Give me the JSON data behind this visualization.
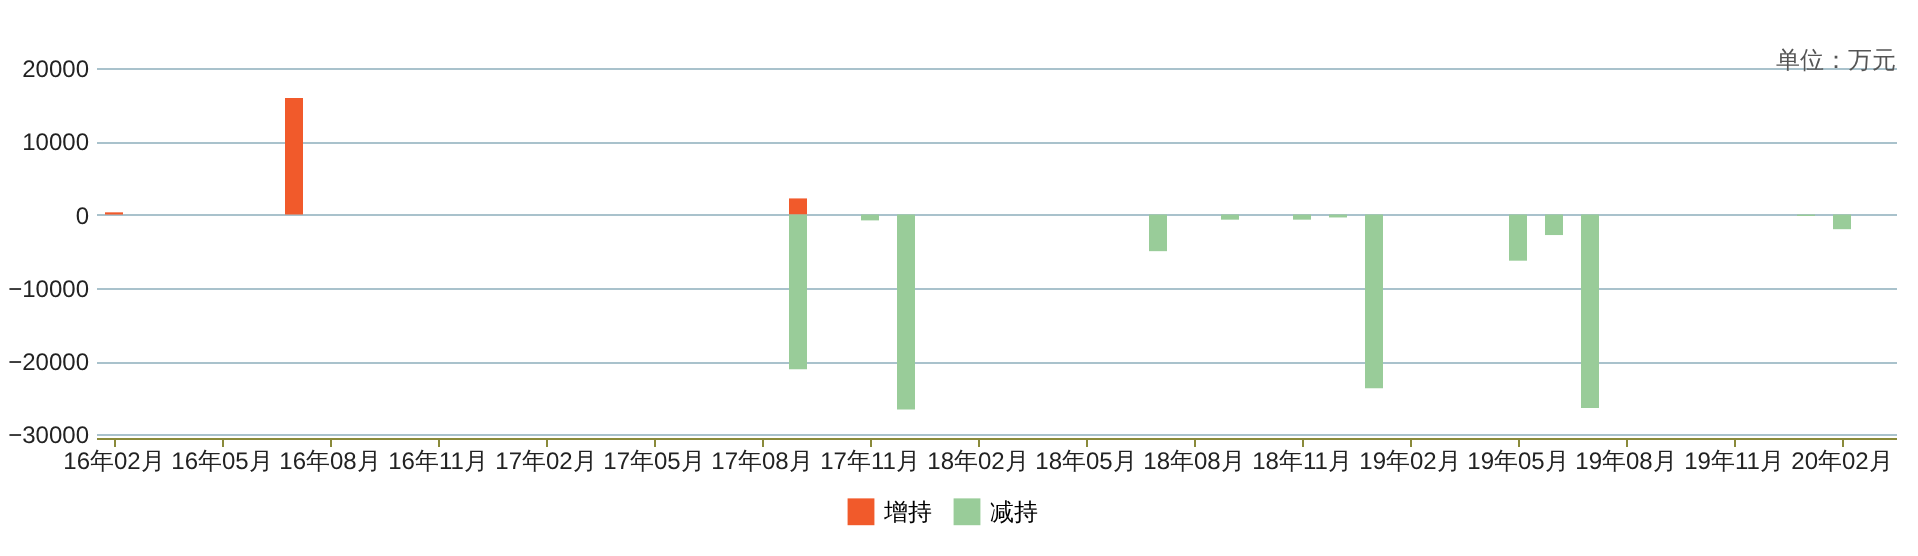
{
  "chart_data": {
    "type": "bar",
    "stacked": true,
    "annotations": [
      "单位：万元"
    ],
    "categories": [
      "16年02月",
      null,
      null,
      "16年05月",
      null,
      null,
      "16年08月",
      null,
      null,
      "16年11月",
      null,
      null,
      "17年02月",
      null,
      null,
      "17年05月",
      null,
      null,
      "17年08月",
      null,
      null,
      "17年11月",
      null,
      null,
      "18年02月",
      null,
      null,
      "18年05月",
      null,
      null,
      "18年08月",
      null,
      null,
      "18年11月",
      null,
      null,
      "19年02月",
      null,
      null,
      "19年05月",
      null,
      null,
      "19年08月",
      null,
      null,
      "19年11月",
      null,
      null,
      "20年02月",
      null
    ],
    "series": [
      {
        "name": "增持",
        "color": "#f15a2b",
        "values": [
          300,
          null,
          null,
          null,
          null,
          15900,
          null,
          null,
          null,
          null,
          null,
          null,
          null,
          null,
          null,
          null,
          null,
          null,
          null,
          2200,
          null,
          null,
          null,
          null,
          null,
          null,
          null,
          null,
          null,
          null,
          null,
          null,
          null,
          null,
          null,
          null,
          null,
          null,
          null,
          null,
          null,
          null,
          null,
          null,
          null,
          null,
          null,
          null,
          null,
          null
        ]
      },
      {
        "name": "减持",
        "color": "#99cc99",
        "values": [
          null,
          null,
          null,
          null,
          null,
          null,
          null,
          null,
          null,
          null,
          null,
          null,
          null,
          null,
          null,
          null,
          null,
          null,
          null,
          -21100,
          null,
          -800,
          -26600,
          null,
          null,
          null,
          null,
          null,
          null,
          -5000,
          null,
          -700,
          null,
          -700,
          -400,
          -23700,
          null,
          null,
          null,
          -6300,
          -2800,
          -26400,
          null,
          null,
          null,
          null,
          null,
          -200,
          -2000,
          null
        ]
      }
    ],
    "ylim": [
      -30500,
      20000
    ],
    "yticks": [
      -30000,
      -20000,
      -10000,
      0,
      10000,
      20000
    ],
    "grid": "y",
    "legend": "bottom"
  }
}
